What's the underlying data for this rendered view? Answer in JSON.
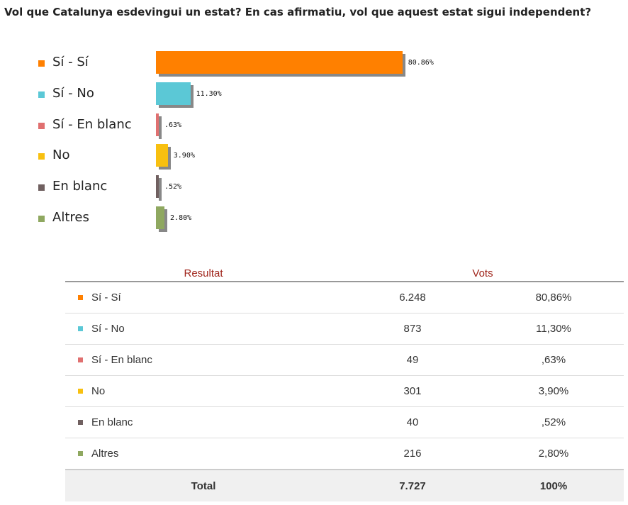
{
  "question": "Vol que Catalunya esdevingui un estat? En cas afirmatiu, vol que aquest estat sigui independent?",
  "chart_data": {
    "type": "bar",
    "orientation": "horizontal",
    "categories": [
      "Sí - Sí",
      "Sí - No",
      "Sí - En blanc",
      "No",
      "En blanc",
      "Altres"
    ],
    "values": [
      80.86,
      11.3,
      0.63,
      3.9,
      0.52,
      2.8
    ],
    "value_labels": [
      "80.86%",
      "11.30%",
      ".63%",
      "3.90%",
      ".52%",
      "2.80%"
    ],
    "colors": [
      "#ff8000",
      "#5bc8d6",
      "#e07070",
      "#f8c010",
      "#706060",
      "#8fa860"
    ],
    "xlim": [
      0,
      100
    ],
    "legend": "left",
    "grid": false
  },
  "table": {
    "headers": {
      "result": "Resultat",
      "votes": "Vots"
    },
    "rows": [
      {
        "label": "Sí - Sí",
        "votes": "6.248",
        "percent": "80,86%",
        "color": "#ff8000"
      },
      {
        "label": "Sí - No",
        "votes": "873",
        "percent": "11,30%",
        "color": "#5bc8d6"
      },
      {
        "label": "Sí - En blanc",
        "votes": "49",
        "percent": ",63%",
        "color": "#e07070"
      },
      {
        "label": "No",
        "votes": "301",
        "percent": "3,90%",
        "color": "#f8c010"
      },
      {
        "label": "En blanc",
        "votes": "40",
        "percent": ",52%",
        "color": "#706060"
      },
      {
        "label": "Altres",
        "votes": "216",
        "percent": "2,80%",
        "color": "#8fa860"
      }
    ],
    "total": {
      "label": "Total",
      "votes": "7.727",
      "percent": "100%"
    }
  }
}
